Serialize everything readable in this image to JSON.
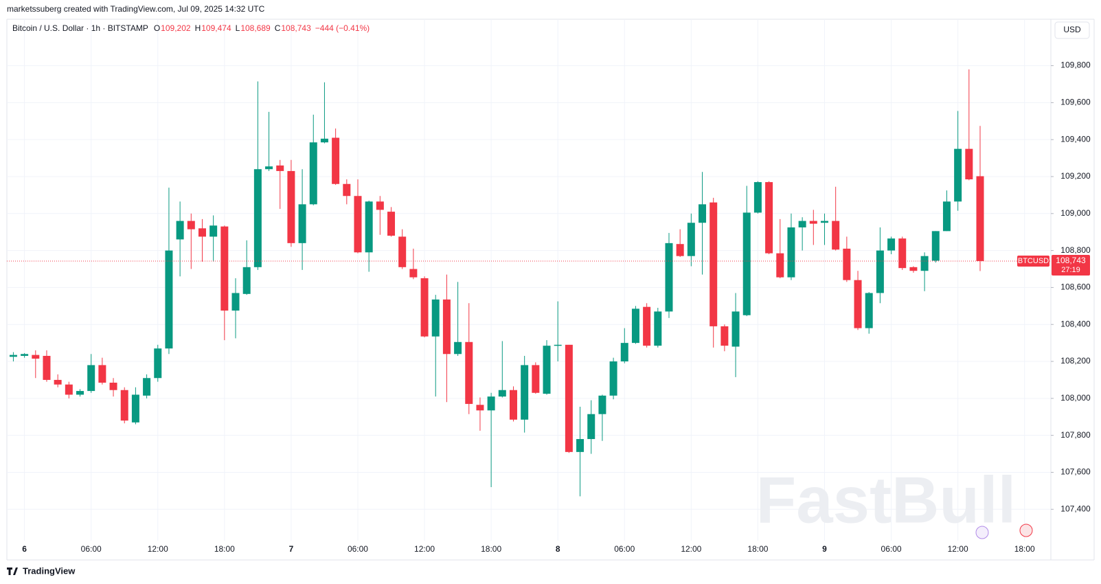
{
  "header": {
    "credit": "marketssuberg created with TradingView.com, Jul 09, 2025 14:32 UTC",
    "symbol": "Bitcoin / U.S. Dollar · 1h · BITSTAMP",
    "ohlc": [
      {
        "key": "O",
        "text": "109,202"
      },
      {
        "key": "H",
        "text": "109,474"
      },
      {
        "key": "L",
        "text": "108,689"
      },
      {
        "key": "C",
        "text": "108,743"
      }
    ],
    "change": "−444 (−0.41%)",
    "currency": "USD"
  },
  "footer": {
    "brand": "TradingView"
  },
  "watermark": "FastBull",
  "chart_data": {
    "type": "candlestick",
    "symbol": "BTCUSD",
    "up_color": "#089981",
    "down_color": "#f23645",
    "grid": true,
    "price_label": {
      "value": "108,743",
      "countdown": "27:19"
    },
    "x": [
      "2025-07-05 23:00",
      "2025-07-06 00:00",
      "2025-07-06 01:00",
      "2025-07-06 02:00",
      "2025-07-06 03:00",
      "2025-07-06 04:00",
      "2025-07-06 05:00",
      "2025-07-06 06:00",
      "2025-07-06 07:00",
      "2025-07-06 08:00",
      "2025-07-06 09:00",
      "2025-07-06 10:00",
      "2025-07-06 11:00",
      "2025-07-06 12:00",
      "2025-07-06 13:00",
      "2025-07-06 14:00",
      "2025-07-06 15:00",
      "2025-07-06 16:00",
      "2025-07-06 17:00",
      "2025-07-06 18:00",
      "2025-07-06 19:00",
      "2025-07-06 20:00",
      "2025-07-06 21:00",
      "2025-07-06 22:00",
      "2025-07-06 23:00",
      "2025-07-07 00:00",
      "2025-07-07 01:00",
      "2025-07-07 02:00",
      "2025-07-07 03:00",
      "2025-07-07 04:00",
      "2025-07-07 05:00",
      "2025-07-07 06:00",
      "2025-07-07 07:00",
      "2025-07-07 08:00",
      "2025-07-07 09:00",
      "2025-07-07 10:00",
      "2025-07-07 11:00",
      "2025-07-07 12:00",
      "2025-07-07 13:00",
      "2025-07-07 14:00",
      "2025-07-07 15:00",
      "2025-07-07 16:00",
      "2025-07-07 17:00",
      "2025-07-07 18:00",
      "2025-07-07 19:00",
      "2025-07-07 20:00",
      "2025-07-07 21:00",
      "2025-07-07 22:00",
      "2025-07-07 23:00",
      "2025-07-08 00:00",
      "2025-07-08 01:00",
      "2025-07-08 02:00",
      "2025-07-08 03:00",
      "2025-07-08 04:00",
      "2025-07-08 05:00",
      "2025-07-08 06:00",
      "2025-07-08 07:00",
      "2025-07-08 08:00",
      "2025-07-08 09:00",
      "2025-07-08 10:00",
      "2025-07-08 11:00",
      "2025-07-08 12:00",
      "2025-07-08 13:00",
      "2025-07-08 14:00",
      "2025-07-08 15:00",
      "2025-07-08 16:00",
      "2025-07-08 17:00",
      "2025-07-08 18:00",
      "2025-07-08 19:00",
      "2025-07-08 20:00",
      "2025-07-08 21:00",
      "2025-07-08 22:00",
      "2025-07-08 23:00",
      "2025-07-09 00:00",
      "2025-07-09 01:00",
      "2025-07-09 02:00",
      "2025-07-09 03:00",
      "2025-07-09 04:00",
      "2025-07-09 05:00",
      "2025-07-09 06:00",
      "2025-07-09 07:00",
      "2025-07-09 08:00",
      "2025-07-09 09:00",
      "2025-07-09 10:00",
      "2025-07-09 11:00",
      "2025-07-09 12:00",
      "2025-07-09 13:00",
      "2025-07-09 14:00"
    ],
    "open": [
      108225,
      108230,
      108235,
      108230,
      108100,
      108075,
      108020,
      108040,
      108180,
      108085,
      108045,
      107870,
      108015,
      108110,
      108270,
      108860,
      108960,
      108920,
      108875,
      108930,
      108475,
      108565,
      108710,
      109240,
      109260,
      109230,
      108840,
      109050,
      109385,
      109410,
      109160,
      109095,
      108790,
      109065,
      109010,
      108875,
      108700,
      108650,
      108335,
      108535,
      108240,
      108305,
      107965,
      107935,
      108010,
      108045,
      107885,
      108180,
      108025,
      108285,
      108290,
      107710,
      107780,
      107915,
      108015,
      108200,
      108300,
      108495,
      108285,
      108470,
      108835,
      108770,
      108950,
      109060,
      108390,
      108280,
      108450,
      109005,
      109170,
      108785,
      108655,
      108925,
      108960,
      108950,
      108960,
      108810,
      108640,
      108380,
      108570,
      108800,
      108865,
      108710,
      108690,
      108745,
      108905,
      109065,
      109350,
      109202
    ],
    "high": [
      108250,
      108245,
      108260,
      108260,
      108130,
      108090,
      108050,
      108240,
      108220,
      108110,
      108060,
      108060,
      108130,
      108290,
      109140,
      109065,
      109000,
      108970,
      108990,
      108935,
      108650,
      108855,
      109715,
      109550,
      109290,
      109290,
      109240,
      109535,
      109710,
      109460,
      109185,
      109185,
      109070,
      109095,
      109035,
      108915,
      108810,
      108660,
      108560,
      108670,
      108630,
      108515,
      108005,
      108030,
      108310,
      108065,
      108230,
      108195,
      108315,
      108525,
      108290,
      107955,
      107990,
      108020,
      108220,
      108380,
      108500,
      108515,
      108490,
      108895,
      108915,
      109000,
      109225,
      109085,
      108400,
      108570,
      109150,
      109175,
      109175,
      108970,
      109000,
      108980,
      109020,
      109000,
      109145,
      108875,
      108690,
      108575,
      108925,
      108875,
      108875,
      108715,
      108790,
      108905,
      109125,
      109555,
      109780,
      109474
    ],
    "low": [
      108200,
      108220,
      108110,
      108090,
      108060,
      108000,
      108010,
      108030,
      108075,
      108010,
      107865,
      107860,
      108000,
      108090,
      108240,
      108660,
      108700,
      108740,
      108740,
      108315,
      108325,
      108560,
      108695,
      109230,
      109025,
      108820,
      108695,
      109045,
      109380,
      109155,
      109050,
      108785,
      108685,
      108885,
      108875,
      108700,
      108645,
      108330,
      108010,
      107980,
      108230,
      107915,
      107825,
      107520,
      108005,
      107875,
      107815,
      108025,
      108020,
      108200,
      107705,
      107470,
      107700,
      107770,
      107995,
      108190,
      108295,
      108275,
      108275,
      108435,
      108765,
      108715,
      108670,
      108275,
      108255,
      108115,
      108445,
      109000,
      108780,
      108650,
      108640,
      108800,
      108830,
      108830,
      108800,
      108630,
      108370,
      108350,
      108515,
      108780,
      108695,
      108680,
      108580,
      108735,
      108905,
      109015,
      109180,
      108689
    ],
    "close": [
      108235,
      108240,
      108215,
      108100,
      108075,
      108020,
      108040,
      108180,
      108085,
      108045,
      107880,
      108020,
      108110,
      108270,
      108800,
      108960,
      108915,
      108875,
      108935,
      108475,
      108570,
      108710,
      109240,
      109255,
      109230,
      108840,
      109050,
      109385,
      109405,
      109160,
      109095,
      108790,
      109065,
      109020,
      108880,
      108710,
      108655,
      108335,
      108535,
      108240,
      108305,
      107970,
      107935,
      108010,
      108045,
      107885,
      108180,
      108030,
      108285,
      108290,
      107710,
      107780,
      107915,
      108015,
      108200,
      108300,
      108485,
      108285,
      108470,
      108840,
      108770,
      108950,
      109050,
      108390,
      108285,
      108470,
      109005,
      109170,
      108785,
      108655,
      108925,
      108960,
      108945,
      108960,
      108805,
      108640,
      108380,
      108570,
      108800,
      108865,
      108705,
      108690,
      108770,
      108905,
      109065,
      109350,
      109185,
      108743
    ],
    "xlim": [
      "2025-07-05 22:25",
      "2025-07-09 20:22"
    ],
    "xticks": [
      {
        "value": "2025-07-06 00:00",
        "label": "6"
      },
      {
        "value": "2025-07-06 06:00",
        "label": "06:00"
      },
      {
        "value": "2025-07-06 12:00",
        "label": "12:00"
      },
      {
        "value": "2025-07-06 18:00",
        "label": "18:00"
      },
      {
        "value": "2025-07-07 00:00",
        "label": "7"
      },
      {
        "value": "2025-07-07 06:00",
        "label": "06:00"
      },
      {
        "value": "2025-07-07 12:00",
        "label": "12:00"
      },
      {
        "value": "2025-07-07 18:00",
        "label": "18:00"
      },
      {
        "value": "2025-07-08 00:00",
        "label": "8"
      },
      {
        "value": "2025-07-08 06:00",
        "label": "06:00"
      },
      {
        "value": "2025-07-08 12:00",
        "label": "12:00"
      },
      {
        "value": "2025-07-08 18:00",
        "label": "18:00"
      },
      {
        "value": "2025-07-09 00:00",
        "label": "9"
      },
      {
        "value": "2025-07-09 06:00",
        "label": "06:00"
      },
      {
        "value": "2025-07-09 12:00",
        "label": "12:00"
      },
      {
        "value": "2025-07-09 18:00",
        "label": "18:00"
      }
    ],
    "ylim": [
      107230,
      110040
    ],
    "yticks": [
      {
        "value": 107400,
        "label": "107,400"
      },
      {
        "value": 107600,
        "label": "107,600"
      },
      {
        "value": 107800,
        "label": "107,800"
      },
      {
        "value": 108000,
        "label": "108,000"
      },
      {
        "value": 108200,
        "label": "108,200"
      },
      {
        "value": 108400,
        "label": "108,400"
      },
      {
        "value": 108600,
        "label": "108,600"
      },
      {
        "value": 108800,
        "label": "108,800"
      },
      {
        "value": 109000,
        "label": "109,000"
      },
      {
        "value": 109200,
        "label": "109,200"
      },
      {
        "value": 109400,
        "label": "109,400"
      },
      {
        "value": 109600,
        "label": "109,600"
      },
      {
        "value": 109800,
        "label": "109,800"
      }
    ]
  }
}
